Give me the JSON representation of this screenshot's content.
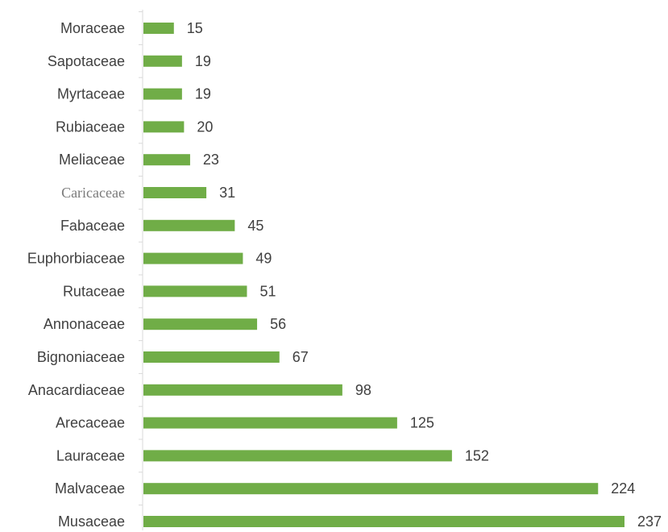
{
  "chart_data": {
    "type": "bar",
    "orientation": "horizontal",
    "title": "",
    "xlabel": "",
    "ylabel": "",
    "categories": [
      "Moraceae",
      "Sapotaceae",
      "Myrtaceae",
      "Rubiaceae",
      "Meliaceae",
      "Caricaceae",
      "Fabaceae",
      "Euphorbiaceae",
      "Rutaceae",
      "Annonaceae",
      "Bignoniaceae",
      "Anacardiaceae",
      "Arecaceae",
      "Lauraceae",
      "Malvaceae",
      "Musaceae"
    ],
    "values": [
      15,
      19,
      19,
      20,
      23,
      31,
      45,
      49,
      51,
      56,
      67,
      98,
      125,
      152,
      224,
      237
    ],
    "data_labels": [
      "15",
      "19",
      "19",
      "20",
      "23",
      "31",
      "45",
      "49",
      "51",
      "56",
      "67",
      "98",
      "125",
      "152",
      "224",
      "237"
    ],
    "xlim": [
      0,
      237
    ],
    "grid": false,
    "legend": "none",
    "bar_color": "#70ad47",
    "label_color": "#404040",
    "axis_color": "#d9d9d9"
  }
}
